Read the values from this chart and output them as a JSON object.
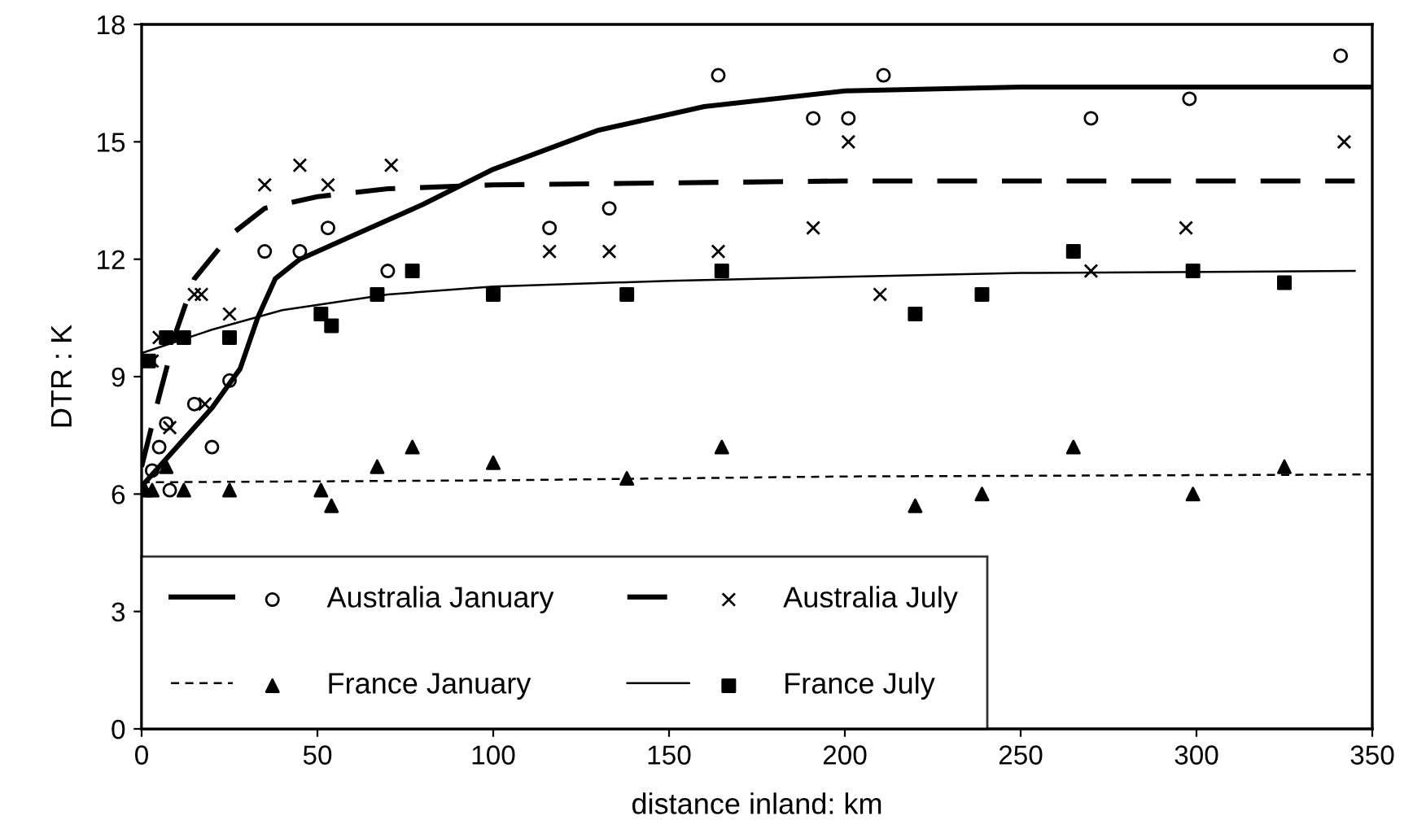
{
  "chart_data": {
    "type": "scatter",
    "xlabel": "distance inland: km",
    "ylabel": "DTR : K",
    "xlim": [
      0,
      350
    ],
    "ylim": [
      0,
      18
    ],
    "xticks": [
      0,
      50,
      100,
      150,
      200,
      250,
      300,
      350
    ],
    "yticks": [
      0,
      3,
      6,
      9,
      12,
      15,
      18
    ],
    "grid": false,
    "legend": "bottom left",
    "series": [
      {
        "name": "Australia January",
        "marker": "circle",
        "color": "#000000",
        "x": [
          3,
          5,
          7,
          8,
          15,
          20,
          25,
          35,
          45,
          53,
          70,
          116,
          133,
          164,
          191,
          201,
          211,
          270,
          298,
          341
        ],
        "values": [
          6.6,
          7.2,
          7.8,
          6.1,
          8.3,
          7.2,
          8.9,
          12.2,
          12.2,
          12.8,
          11.7,
          12.8,
          13.3,
          16.7,
          15.6,
          15.6,
          16.7,
          15.6,
          16.1,
          17.2
        ]
      },
      {
        "name": "Australia July",
        "marker": "cross",
        "color": "#000000",
        "x": [
          3,
          5,
          8,
          15,
          17,
          18,
          25,
          35,
          45,
          53,
          71,
          116,
          133,
          164,
          191,
          201,
          210,
          270,
          297,
          342
        ],
        "values": [
          9.4,
          10.0,
          7.7,
          11.1,
          11.1,
          8.3,
          10.6,
          13.9,
          14.4,
          13.9,
          14.4,
          12.2,
          12.2,
          12.2,
          12.8,
          15.0,
          11.1,
          11.7,
          12.8,
          15.0
        ]
      },
      {
        "name": "France January",
        "marker": "triangle",
        "color": "#000000",
        "x": [
          1,
          3,
          7,
          12,
          25,
          51,
          54,
          67,
          77,
          100,
          138,
          165,
          220,
          239,
          265,
          299,
          325
        ],
        "values": [
          6.1,
          6.1,
          6.7,
          6.1,
          6.1,
          6.1,
          5.7,
          6.7,
          7.2,
          6.8,
          6.4,
          7.2,
          5.7,
          6.0,
          7.2,
          6.0,
          6.7
        ]
      },
      {
        "name": "France July",
        "marker": "square",
        "color": "#000000",
        "x": [
          2,
          7,
          12,
          25,
          51,
          54,
          67,
          77,
          100,
          138,
          165,
          220,
          239,
          265,
          299,
          325
        ],
        "values": [
          9.4,
          10.0,
          10.0,
          10.0,
          10.6,
          10.3,
          11.1,
          11.7,
          11.1,
          11.1,
          11.7,
          10.6,
          11.1,
          12.2,
          11.7,
          11.4
        ]
      },
      {
        "type": "line",
        "line_style": "solid",
        "color": "#000000",
        "x": [
          0,
          10,
          20,
          28,
          33,
          38,
          45,
          60,
          80,
          100,
          130,
          160,
          200,
          250,
          350
        ],
        "values": [
          6.2,
          7.2,
          8.2,
          9.2,
          10.5,
          11.5,
          12.0,
          12.6,
          13.4,
          14.3,
          15.3,
          15.9,
          16.3,
          16.4,
          16.4
        ]
      },
      {
        "type": "line",
        "line_style": "dashed",
        "color": "#000000",
        "x": [
          0,
          5,
          10,
          15,
          25,
          35,
          50,
          70,
          100,
          200,
          345
        ],
        "values": [
          6.7,
          8.5,
          10.2,
          11.5,
          12.6,
          13.3,
          13.6,
          13.8,
          13.9,
          14.0,
          14.0
        ]
      },
      {
        "type": "line",
        "line_style": "dashed",
        "color": "#000000",
        "x": [
          0,
          100,
          200,
          350
        ],
        "values": [
          6.3,
          6.35,
          6.45,
          6.5
        ]
      },
      {
        "type": "line",
        "line_style": "solid",
        "color": "#000000",
        "x": [
          0,
          20,
          40,
          70,
          100,
          150,
          200,
          250,
          345
        ],
        "values": [
          9.6,
          10.2,
          10.7,
          11.1,
          11.3,
          11.45,
          11.55,
          11.65,
          11.7
        ]
      }
    ]
  }
}
